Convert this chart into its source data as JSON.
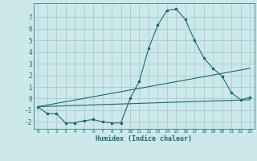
{
  "xlabel": "Humidex (Indice chaleur)",
  "background_color": "#cce8ea",
  "grid_color": "#aacdd0",
  "line_color": "#1a6b6e",
  "xlim": [
    -0.5,
    23.5
  ],
  "ylim": [
    -2.6,
    8.2
  ],
  "yticks": [
    -2,
    -1,
    0,
    1,
    2,
    3,
    4,
    5,
    6,
    7
  ],
  "xticks": [
    0,
    1,
    2,
    3,
    4,
    5,
    6,
    7,
    8,
    9,
    10,
    11,
    12,
    13,
    14,
    15,
    16,
    17,
    18,
    19,
    20,
    21,
    22,
    23
  ],
  "line1_x": [
    0,
    1,
    2,
    3,
    4,
    5,
    6,
    7,
    8,
    9,
    10,
    11,
    12,
    13,
    14,
    15,
    16,
    17,
    18,
    19,
    20,
    21,
    22,
    23
  ],
  "line1_y": [
    -0.7,
    -1.3,
    -1.3,
    -2.1,
    -2.1,
    -1.9,
    -1.8,
    -2.0,
    -2.1,
    -2.1,
    0.0,
    1.5,
    4.3,
    6.3,
    7.6,
    7.7,
    6.8,
    5.0,
    3.5,
    2.6,
    1.9,
    0.5,
    -0.1,
    0.1
  ],
  "line2_x": [
    0,
    23
  ],
  "line2_y": [
    -0.7,
    2.6
  ],
  "line3_x": [
    0,
    23
  ],
  "line3_y": [
    -0.7,
    -0.1
  ]
}
